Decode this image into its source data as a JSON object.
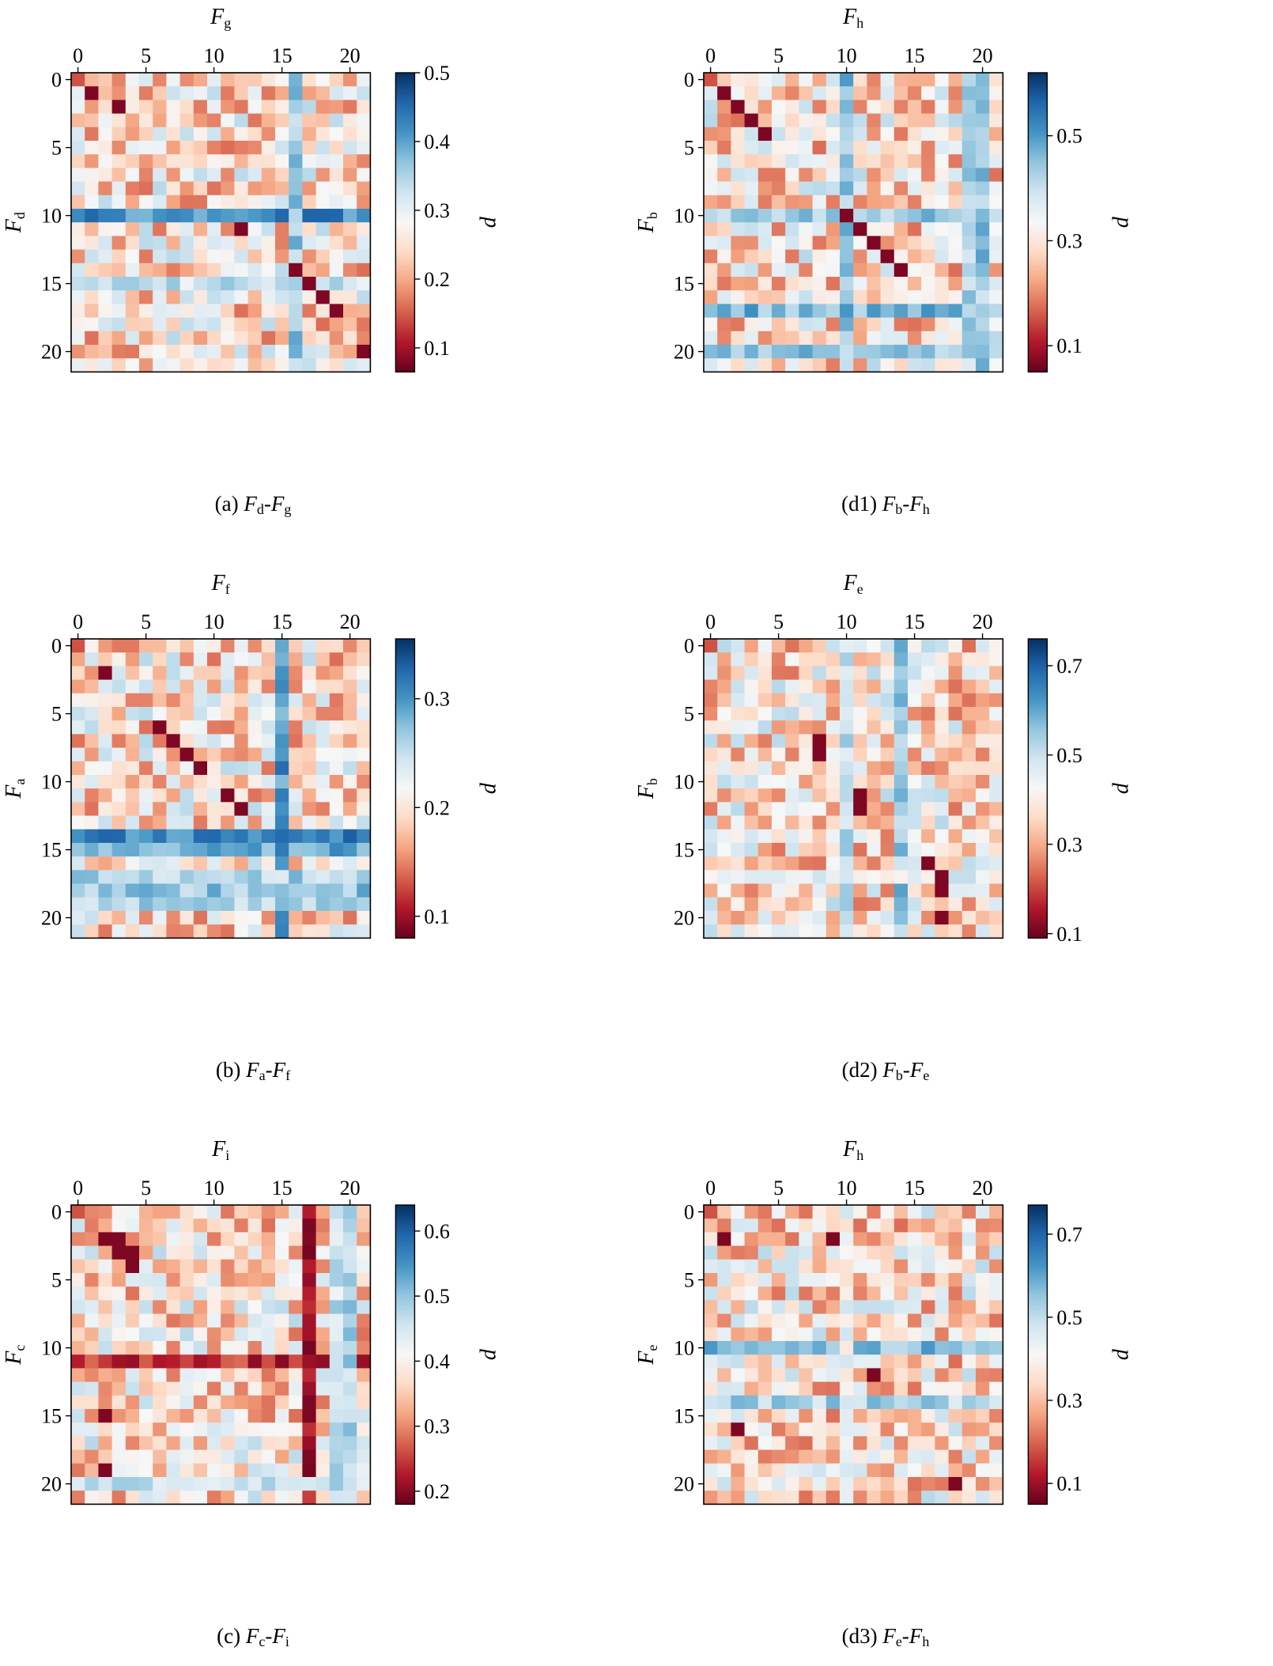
{
  "chart_data": [
    {
      "id": "a",
      "type": "heatmap",
      "caption_tag": "(a)",
      "xlabel": "F",
      "xlabel_sub": "g",
      "ylabel": "F",
      "ylabel_sub": "d",
      "colorbar_label": "d",
      "vmin": 0.065,
      "vmax": 0.5,
      "xticks": [
        0,
        5,
        10,
        15,
        20
      ],
      "yticks": [
        0,
        5,
        10,
        15,
        20
      ],
      "colorbar_ticks": [
        0.1,
        0.2,
        0.3,
        0.4,
        0.5
      ],
      "grid": false,
      "colormap": "RdBu",
      "seed": 11,
      "diagonal_low": [
        [
          11,
          12
        ],
        [
          14,
          16
        ],
        [
          15,
          17
        ],
        [
          16,
          18
        ],
        [
          17,
          19
        ],
        [
          20,
          21
        ],
        [
          1,
          1
        ],
        [
          2,
          3
        ]
      ],
      "bands": [
        {
          "axis": "row",
          "index": 10,
          "value": 0.42
        },
        {
          "axis": "col",
          "index": 16,
          "value": 0.36
        },
        {
          "axis": "row",
          "index": 15,
          "value": 0.33
        }
      ]
    },
    {
      "id": "d1",
      "type": "heatmap",
      "caption_tag": "(d1)",
      "xlabel": "F",
      "xlabel_sub": "h",
      "ylabel": "F",
      "ylabel_sub": "b",
      "colorbar_label": "d",
      "vmin": 0.05,
      "vmax": 0.62,
      "xticks": [
        0,
        5,
        10,
        15,
        20
      ],
      "yticks": [
        0,
        5,
        10,
        15,
        20
      ],
      "colorbar_ticks": [
        0.1,
        0.3,
        0.5
      ],
      "grid": false,
      "colormap": "RdBu",
      "seed": 23,
      "diagonal_low": [
        [
          1,
          1
        ],
        [
          2,
          2
        ],
        [
          3,
          3
        ],
        [
          4,
          4
        ],
        [
          10,
          10
        ],
        [
          11,
          11
        ],
        [
          12,
          12
        ],
        [
          13,
          13
        ],
        [
          14,
          14
        ]
      ],
      "bands": [
        {
          "axis": "col",
          "index": 10,
          "value": 0.45
        },
        {
          "axis": "row",
          "index": 10,
          "value": 0.44
        },
        {
          "axis": "row",
          "index": 17,
          "value": 0.46
        },
        {
          "axis": "row",
          "index": 20,
          "value": 0.44
        },
        {
          "axis": "col",
          "index": 19,
          "value": 0.42
        },
        {
          "axis": "col",
          "index": 20,
          "value": 0.44
        }
      ]
    },
    {
      "id": "b",
      "type": "heatmap",
      "caption_tag": "(b)",
      "xlabel": "F",
      "xlabel_sub": "f",
      "ylabel": "F",
      "ylabel_sub": "a",
      "colorbar_label": "d",
      "vmin": 0.08,
      "vmax": 0.355,
      "xticks": [
        0,
        5,
        10,
        15,
        20
      ],
      "yticks": [
        0,
        5,
        10,
        15,
        20
      ],
      "colorbar_ticks": [
        0.1,
        0.2,
        0.3
      ],
      "grid": false,
      "colormap": "RdBu",
      "seed": 37,
      "diagonal_low": [
        [
          2,
          2
        ],
        [
          6,
          6
        ],
        [
          7,
          7
        ],
        [
          8,
          8
        ],
        [
          9,
          9
        ],
        [
          11,
          11
        ],
        [
          12,
          12
        ]
      ],
      "bands": [
        {
          "axis": "row",
          "index": 14,
          "value": 0.31
        },
        {
          "axis": "row",
          "index": 15,
          "value": 0.29
        },
        {
          "axis": "col",
          "index": 15,
          "value": 0.3
        },
        {
          "axis": "row",
          "index": 17,
          "value": 0.26
        },
        {
          "axis": "row",
          "index": 18,
          "value": 0.27
        },
        {
          "axis": "row",
          "index": 19,
          "value": 0.26
        }
      ]
    },
    {
      "id": "d2",
      "type": "heatmap",
      "caption_tag": "(d2)",
      "xlabel": "F",
      "xlabel_sub": "e",
      "ylabel": "F",
      "ylabel_sub": "b",
      "colorbar_label": "d",
      "vmin": 0.09,
      "vmax": 0.76,
      "xticks": [
        0,
        5,
        10,
        15,
        20
      ],
      "yticks": [
        0,
        5,
        10,
        15,
        20
      ],
      "colorbar_ticks": [
        0.1,
        0.3,
        0.5,
        0.7
      ],
      "grid": false,
      "colormap": "RdBu",
      "seed": 41,
      "diagonal_low": [
        [
          7,
          8
        ],
        [
          8,
          8
        ],
        [
          11,
          11
        ],
        [
          12,
          11
        ],
        [
          16,
          16
        ],
        [
          17,
          17
        ],
        [
          18,
          17
        ],
        [
          20,
          17
        ]
      ],
      "bands": [
        {
          "axis": "col",
          "index": 10,
          "value": 0.5
        },
        {
          "axis": "col",
          "index": 14,
          "value": 0.55
        },
        {
          "axis": "row",
          "index": 17,
          "value": 0.45
        }
      ]
    },
    {
      "id": "c",
      "type": "heatmap",
      "caption_tag": "(c)",
      "xlabel": "F",
      "xlabel_sub": "i",
      "ylabel": "F",
      "ylabel_sub": "c",
      "colorbar_label": "d",
      "vmin": 0.18,
      "vmax": 0.64,
      "xticks": [
        0,
        5,
        10,
        15,
        20
      ],
      "yticks": [
        0,
        5,
        10,
        15,
        20
      ],
      "colorbar_ticks": [
        0.2,
        0.3,
        0.4,
        0.5,
        0.6
      ],
      "grid": false,
      "colormap": "RdBu",
      "seed": 53,
      "diagonal_low": [
        [
          2,
          2
        ],
        [
          2,
          3
        ],
        [
          3,
          3
        ],
        [
          3,
          4
        ],
        [
          4,
          4
        ],
        [
          15,
          2
        ],
        [
          19,
          2
        ],
        [
          18,
          17
        ]
      ],
      "bands": [
        {
          "axis": "col",
          "index": 17,
          "value": 0.22
        },
        {
          "axis": "row",
          "index": 11,
          "value": 0.24
        },
        {
          "axis": "row",
          "index": 20,
          "value": 0.47
        },
        {
          "axis": "col",
          "index": 19,
          "value": 0.46
        },
        {
          "axis": "col",
          "index": 20,
          "value": 0.48
        }
      ]
    },
    {
      "id": "d3",
      "type": "heatmap",
      "caption_tag": "(d3)",
      "xlabel": "F",
      "xlabel_sub": "h",
      "ylabel": "F",
      "ylabel_sub": "e",
      "colorbar_label": "d",
      "vmin": 0.05,
      "vmax": 0.77,
      "xticks": [
        0,
        5,
        10,
        15,
        20
      ],
      "yticks": [
        0,
        5,
        10,
        15,
        20
      ],
      "colorbar_ticks": [
        0.1,
        0.3,
        0.5,
        0.7
      ],
      "grid": false,
      "colormap": "RdBu",
      "seed": 67,
      "diagonal_low": [
        [
          2,
          1
        ],
        [
          2,
          9
        ],
        [
          12,
          12
        ],
        [
          16,
          2
        ],
        [
          20,
          18
        ]
      ],
      "bands": [
        {
          "axis": "row",
          "index": 10,
          "value": 0.56
        },
        {
          "axis": "row",
          "index": 14,
          "value": 0.52
        },
        {
          "axis": "col",
          "index": 10,
          "value": 0.42
        }
      ]
    }
  ]
}
